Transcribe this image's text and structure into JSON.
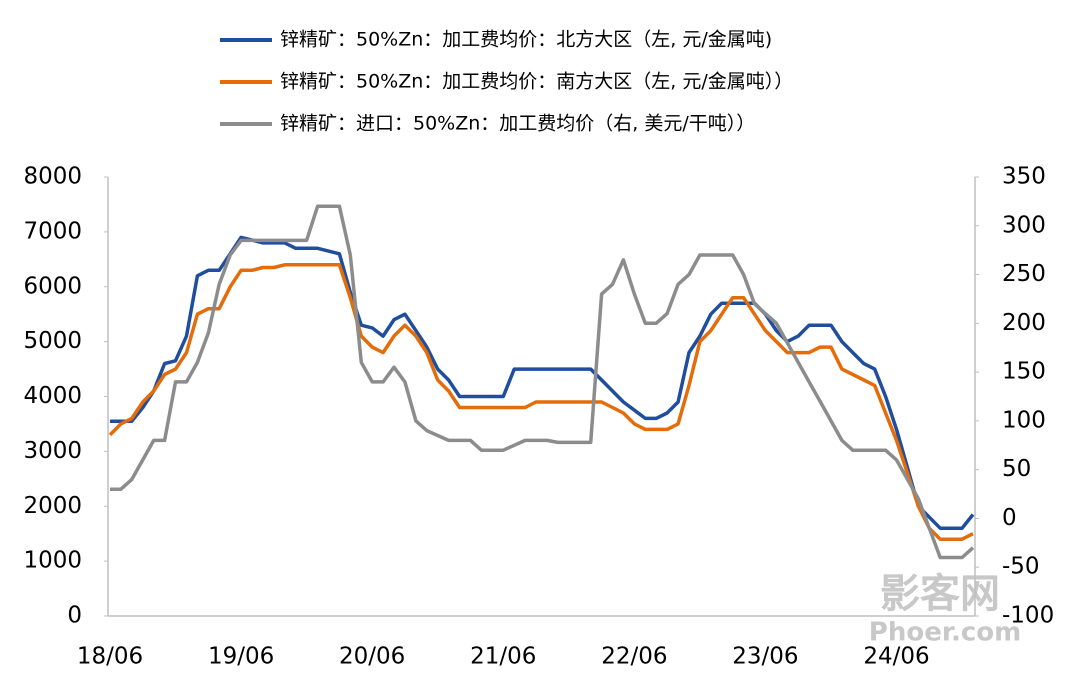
{
  "chart_data": {
    "type": "line",
    "categories": [
      "18/06",
      null,
      null,
      null,
      null,
      null,
      null,
      null,
      null,
      null,
      null,
      null,
      "19/06",
      null,
      null,
      null,
      null,
      null,
      null,
      null,
      null,
      null,
      null,
      null,
      "20/06",
      null,
      null,
      null,
      null,
      null,
      null,
      null,
      null,
      null,
      null,
      null,
      "21/06",
      null,
      null,
      null,
      null,
      null,
      null,
      null,
      null,
      null,
      null,
      null,
      "22/06",
      null,
      null,
      null,
      null,
      null,
      null,
      null,
      null,
      null,
      null,
      null,
      "23/06",
      null,
      null,
      null,
      null,
      null,
      null,
      null,
      null,
      null,
      null,
      null,
      "24/06",
      null,
      null,
      null,
      null,
      null,
      null,
      null
    ],
    "series": [
      {
        "name": "锌精矿：50%Zn：加工费均价：北方大区（左, 元/金属吨)",
        "color": "#1f4e9e",
        "values": [
          3550,
          3550,
          3550,
          3800,
          4100,
          4600,
          4650,
          5100,
          6200,
          6300,
          6300,
          6600,
          6900,
          6850,
          6800,
          6800,
          6800,
          6700,
          6700,
          6700,
          6650,
          6600,
          5900,
          5300,
          5250,
          5100,
          5400,
          5500,
          5200,
          4900,
          4500,
          4300,
          4000,
          4000,
          4000,
          4000,
          4000,
          4500,
          4500,
          4500,
          4500,
          4500,
          4500,
          4500,
          4500,
          4300,
          4100,
          3900,
          3750,
          3600,
          3600,
          3700,
          3900,
          4800,
          5100,
          5500,
          5700,
          5700,
          5700,
          5700,
          5500,
          5200,
          5000,
          5100,
          5300,
          5300,
          5300,
          5000,
          4800,
          4600,
          4500,
          4000,
          3400,
          2700,
          2000,
          1800,
          1600,
          1600,
          1600,
          1850
        ]
      },
      {
        "name": "锌精矿：50%Zn：加工费均价：南方大区（左, 元/金属吨））",
        "color": "#e46c0a",
        "values": [
          3300,
          3500,
          3600,
          3900,
          4100,
          4400,
          4500,
          4800,
          5500,
          5600,
          5600,
          6000,
          6300,
          6300,
          6350,
          6350,
          6400,
          6400,
          6400,
          6400,
          6400,
          6400,
          5800,
          5100,
          4900,
          4800,
          5100,
          5300,
          5100,
          4800,
          4300,
          4100,
          3800,
          3800,
          3800,
          3800,
          3800,
          3800,
          3800,
          3900,
          3900,
          3900,
          3900,
          3900,
          3900,
          3900,
          3800,
          3700,
          3500,
          3400,
          3400,
          3400,
          3500,
          4200,
          5000,
          5200,
          5500,
          5800,
          5800,
          5500,
          5200,
          5000,
          4800,
          4800,
          4800,
          4900,
          4900,
          4500,
          4400,
          4300,
          4200,
          3700,
          3200,
          2600,
          2000,
          1600,
          1400,
          1400,
          1400,
          1500
        ]
      },
      {
        "name": "锌精矿：进口：50%Zn：加工费均价（右, 美元/干吨））",
        "color": "#8c8c8c",
        "axis": "y2",
        "values": [
          30,
          30,
          40,
          60,
          80,
          80,
          140,
          140,
          160,
          190,
          240,
          270,
          285,
          285,
          285,
          285,
          285,
          285,
          285,
          320,
          320,
          320,
          270,
          160,
          140,
          140,
          155,
          140,
          100,
          90,
          85,
          80,
          80,
          80,
          70,
          70,
          70,
          75,
          80,
          80,
          80,
          78,
          78,
          78,
          78,
          230,
          240,
          265,
          230,
          200,
          200,
          210,
          240,
          250,
          270,
          270,
          270,
          270,
          250,
          220,
          210,
          200,
          180,
          160,
          140,
          120,
          100,
          80,
          70,
          70,
          70,
          70,
          60,
          40,
          20,
          -10,
          -40,
          -40,
          -40,
          -30
        ]
      }
    ],
    "ylim": [
      0,
      8000
    ],
    "yticks": [
      0,
      1000,
      2000,
      3000,
      4000,
      5000,
      6000,
      7000,
      8000
    ],
    "y2lim": [
      -100,
      350
    ],
    "y2ticks": [
      -100,
      -50,
      0,
      50,
      100,
      150,
      200,
      250,
      300,
      350
    ],
    "watermark": [
      "影客网",
      "Phoer.com"
    ]
  }
}
